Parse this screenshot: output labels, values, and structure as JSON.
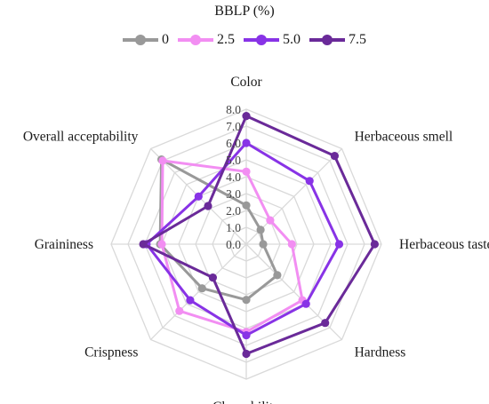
{
  "chart_data": {
    "type": "radar",
    "legend_title": "BBLP (%)",
    "legend_position": "top-center",
    "axes": [
      "Color",
      "Herbaceous smell",
      "Herbaceous taste",
      "Hardness",
      "Chewability",
      "Crispness",
      "Graininess",
      "Overall acceptability"
    ],
    "rlim": [
      0,
      8
    ],
    "ticks": [
      "0.0",
      "1.0",
      "2.0",
      "3.0",
      "4.0",
      "5.0",
      "6.0",
      "7.0",
      "8.0"
    ],
    "grid": true,
    "series": [
      {
        "name": "0",
        "color": "#999999",
        "values": [
          2.3,
          1.2,
          1.0,
          2.6,
          3.3,
          3.7,
          5.1,
          7.1
        ]
      },
      {
        "name": "2.5",
        "color": "#f28ef2",
        "values": [
          4.3,
          2.0,
          2.7,
          4.7,
          5.2,
          5.6,
          5.0,
          7.0
        ]
      },
      {
        "name": "5.0",
        "color": "#8833e6",
        "values": [
          6.0,
          5.3,
          5.5,
          5.0,
          5.4,
          4.7,
          5.9,
          4.0
        ]
      },
      {
        "name": "7.5",
        "color": "#6a2a99",
        "values": [
          7.6,
          7.4,
          7.6,
          6.6,
          6.5,
          2.8,
          6.1,
          3.2
        ]
      }
    ]
  }
}
